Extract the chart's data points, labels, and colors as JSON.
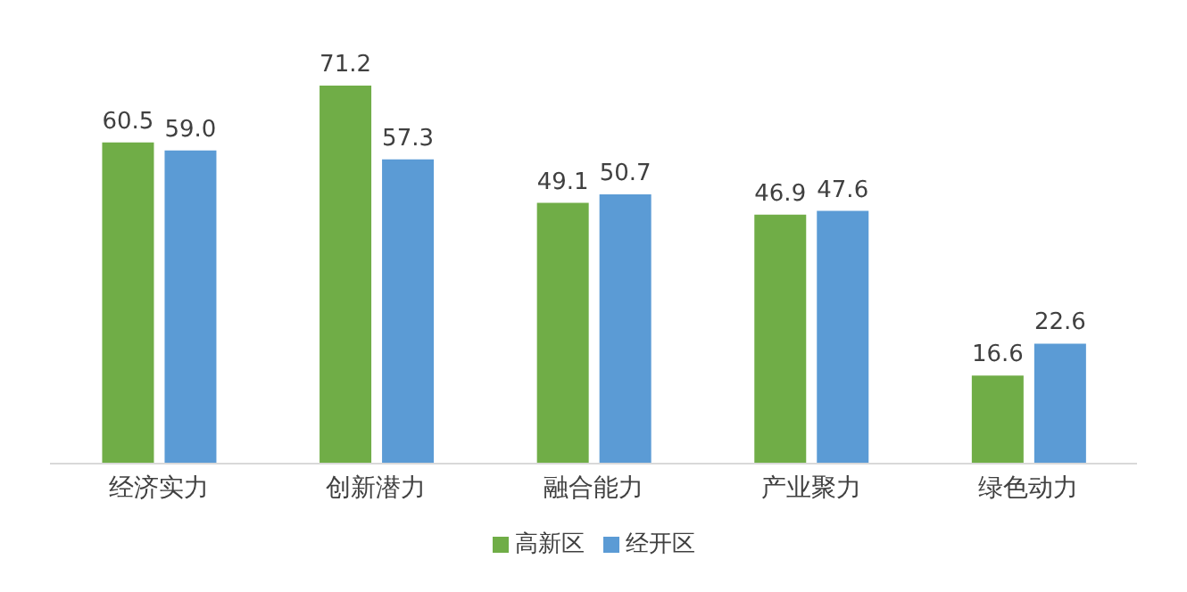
{
  "chart_data": {
    "type": "bar",
    "categories": [
      "经济实力",
      "创新潜力",
      "融合能力",
      "产业聚力",
      "绿色动力"
    ],
    "series": [
      {
        "name": "高新区",
        "color": "#70ad47",
        "values": [
          60.5,
          71.2,
          49.1,
          46.9,
          16.6
        ],
        "value_labels": [
          "60.5",
          "71.2",
          "49.1",
          "46.9",
          "16.6"
        ]
      },
      {
        "name": "经开区",
        "color": "#5b9bd5",
        "values": [
          59.0,
          57.3,
          50.7,
          47.6,
          22.6
        ],
        "value_labels": [
          "59.0",
          "57.3",
          "50.7",
          "47.6",
          "22.6"
        ]
      }
    ],
    "legend": "bottom",
    "grid": false
  }
}
